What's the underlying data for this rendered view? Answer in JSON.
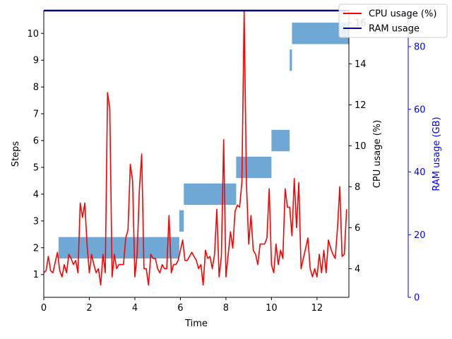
{
  "chart_data": {
    "type": "line",
    "x_axis": {
      "label": "Time",
      "range": [
        0,
        13.4
      ],
      "ticks": [
        0,
        2,
        4,
        6,
        8,
        10,
        12
      ]
    },
    "y_axes": {
      "steps": {
        "label": "Steps",
        "range": [
          0.15,
          10.85
        ],
        "ticks": [
          1,
          2,
          3,
          4,
          5,
          6,
          7,
          8,
          9,
          10
        ],
        "color": "#000000"
      },
      "cpu": {
        "label": "CPU usage (%)",
        "range": [
          2.6,
          16.6
        ],
        "ticks": [
          4,
          6,
          8,
          10,
          12,
          14,
          16
        ],
        "color": "#000000"
      },
      "ram": {
        "label": "RAM usage (GB)",
        "range": [
          0,
          91.5
        ],
        "ticks": [
          0,
          20,
          40,
          60,
          80
        ],
        "color": "#0000ff"
      }
    },
    "legend": {
      "placement": "top-right",
      "entries": [
        {
          "label": "CPU usage (%)",
          "color": "#ff0000"
        },
        {
          "label": "RAM usage",
          "color": "#0000bb"
        }
      ]
    },
    "step_bars": {
      "color": "#6fa8d4",
      "bars": [
        {
          "step": 2,
          "start": 0.65,
          "end": 5.95
        },
        {
          "step": 3,
          "start": 5.95,
          "end": 6.15
        },
        {
          "step": 4,
          "start": 6.15,
          "end": 8.45
        },
        {
          "step": 5,
          "start": 8.45,
          "end": 10.0
        },
        {
          "step": 6,
          "start": 10.0,
          "end": 10.8
        },
        {
          "step": 9,
          "start": 10.8,
          "end": 10.9
        },
        {
          "step": 10,
          "start": 10.9,
          "end": 13.4
        }
      ]
    },
    "series": [
      {
        "name": "CPU usage (%)",
        "axis": "cpu",
        "color": "#ff0000",
        "x": [
          0.0,
          0.1,
          0.2,
          0.3,
          0.4,
          0.5,
          0.6,
          0.7,
          0.8,
          0.9,
          1.0,
          1.1,
          1.2,
          1.3,
          1.4,
          1.5,
          1.6,
          1.7,
          1.8,
          1.9,
          2.0,
          2.1,
          2.2,
          2.3,
          2.4,
          2.5,
          2.6,
          2.7,
          2.8,
          2.9,
          3.0,
          3.1,
          3.2,
          3.3,
          3.4,
          3.5,
          3.6,
          3.7,
          3.8,
          3.9,
          4.0,
          4.1,
          4.2,
          4.3,
          4.4,
          4.5,
          4.6,
          4.7,
          4.8,
          4.9,
          5.0,
          5.1,
          5.2,
          5.3,
          5.4,
          5.5,
          5.6,
          5.7,
          5.8,
          5.9,
          6.0,
          6.1,
          6.2,
          6.3,
          6.4,
          6.5,
          6.6,
          6.7,
          6.8,
          6.9,
          7.0,
          7.1,
          7.2,
          7.3,
          7.4,
          7.5,
          7.6,
          7.7,
          7.8,
          7.9,
          8.0,
          8.1,
          8.2,
          8.3,
          8.4,
          8.5,
          8.6,
          8.7,
          8.8,
          8.9,
          9.0,
          9.1,
          9.2,
          9.3,
          9.4,
          9.5,
          9.6,
          9.7,
          9.8,
          9.9,
          10.0,
          10.1,
          10.2,
          10.3,
          10.4,
          10.5,
          10.6,
          10.7,
          10.8,
          10.9,
          11.0,
          11.1,
          11.2,
          11.3,
          11.4,
          11.5,
          11.6,
          11.7,
          11.8,
          11.9,
          12.0,
          12.1,
          12.2,
          12.3,
          12.4,
          12.5,
          12.6,
          12.7,
          12.8,
          12.9,
          13.0,
          13.1,
          13.2,
          13.3
        ],
        "values": [
          3.8,
          3.9,
          4.6,
          3.9,
          3.8,
          4.3,
          4.8,
          3.9,
          3.6,
          4.2,
          3.8,
          4.7,
          4.5,
          4.2,
          4.4,
          3.8,
          7.2,
          6.5,
          7.2,
          5.2,
          3.8,
          4.7,
          4.2,
          3.8,
          4.0,
          3.2,
          4.7,
          3.8,
          12.6,
          11.8,
          3.6,
          4.7,
          4.0,
          4.2,
          4.2,
          4.2,
          5.5,
          5.9,
          9.1,
          8.3,
          3.6,
          4.7,
          7.9,
          9.6,
          4.0,
          4.0,
          3.2,
          4.7,
          4.5,
          4.5,
          4.0,
          3.8,
          4.2,
          4.0,
          4.0,
          6.6,
          3.8,
          4.2,
          4.2,
          4.4,
          4.9,
          5.4,
          4.4,
          4.4,
          4.6,
          4.8,
          4.6,
          4.4,
          4.0,
          4.2,
          3.2,
          4.9,
          4.5,
          4.6,
          4.0,
          4.7,
          6.9,
          3.6,
          4.6,
          10.3,
          3.6,
          4.7,
          5.8,
          5.0,
          6.8,
          7.1,
          7.0,
          8.2,
          16.6,
          8.2,
          5.2,
          6.6,
          4.9,
          4.7,
          4.2,
          5.2,
          5.2,
          5.2,
          5.5,
          7.9,
          4.2,
          3.8,
          5.2,
          4.2,
          4.9,
          4.5,
          7.9,
          7.0,
          7.0,
          5.6,
          8.4,
          6.0,
          8.2,
          4.0,
          4.5,
          5.0,
          5.5,
          4.0,
          3.6,
          4.0,
          3.6,
          4.7,
          3.8,
          4.9,
          3.8,
          5.4,
          5.0,
          4.7,
          4.5,
          6.0,
          8.0,
          4.6,
          4.7,
          6.9
        ]
      },
      {
        "name": "RAM usage",
        "axis": "ram",
        "color": "#0000bb",
        "x": [
          0.0,
          13.4
        ],
        "values": [
          91.5,
          91.5
        ]
      }
    ]
  }
}
